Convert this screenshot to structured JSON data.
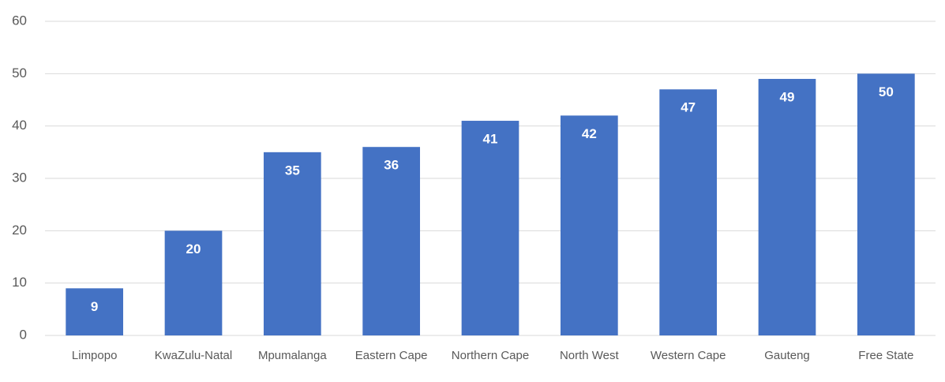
{
  "chart_data": {
    "type": "bar",
    "categories": [
      "Limpopo",
      "KwaZulu-Natal",
      "Mpumalanga",
      "Eastern Cape",
      "Northern Cape",
      "North West",
      "Western Cape",
      "Gauteng",
      "Free State"
    ],
    "values": [
      9,
      20,
      35,
      36,
      41,
      42,
      47,
      49,
      50
    ],
    "color": "#4472c4",
    "ylim": [
      0,
      60
    ],
    "yticks": [
      0,
      10,
      20,
      30,
      40,
      50,
      60
    ],
    "grid": true
  }
}
